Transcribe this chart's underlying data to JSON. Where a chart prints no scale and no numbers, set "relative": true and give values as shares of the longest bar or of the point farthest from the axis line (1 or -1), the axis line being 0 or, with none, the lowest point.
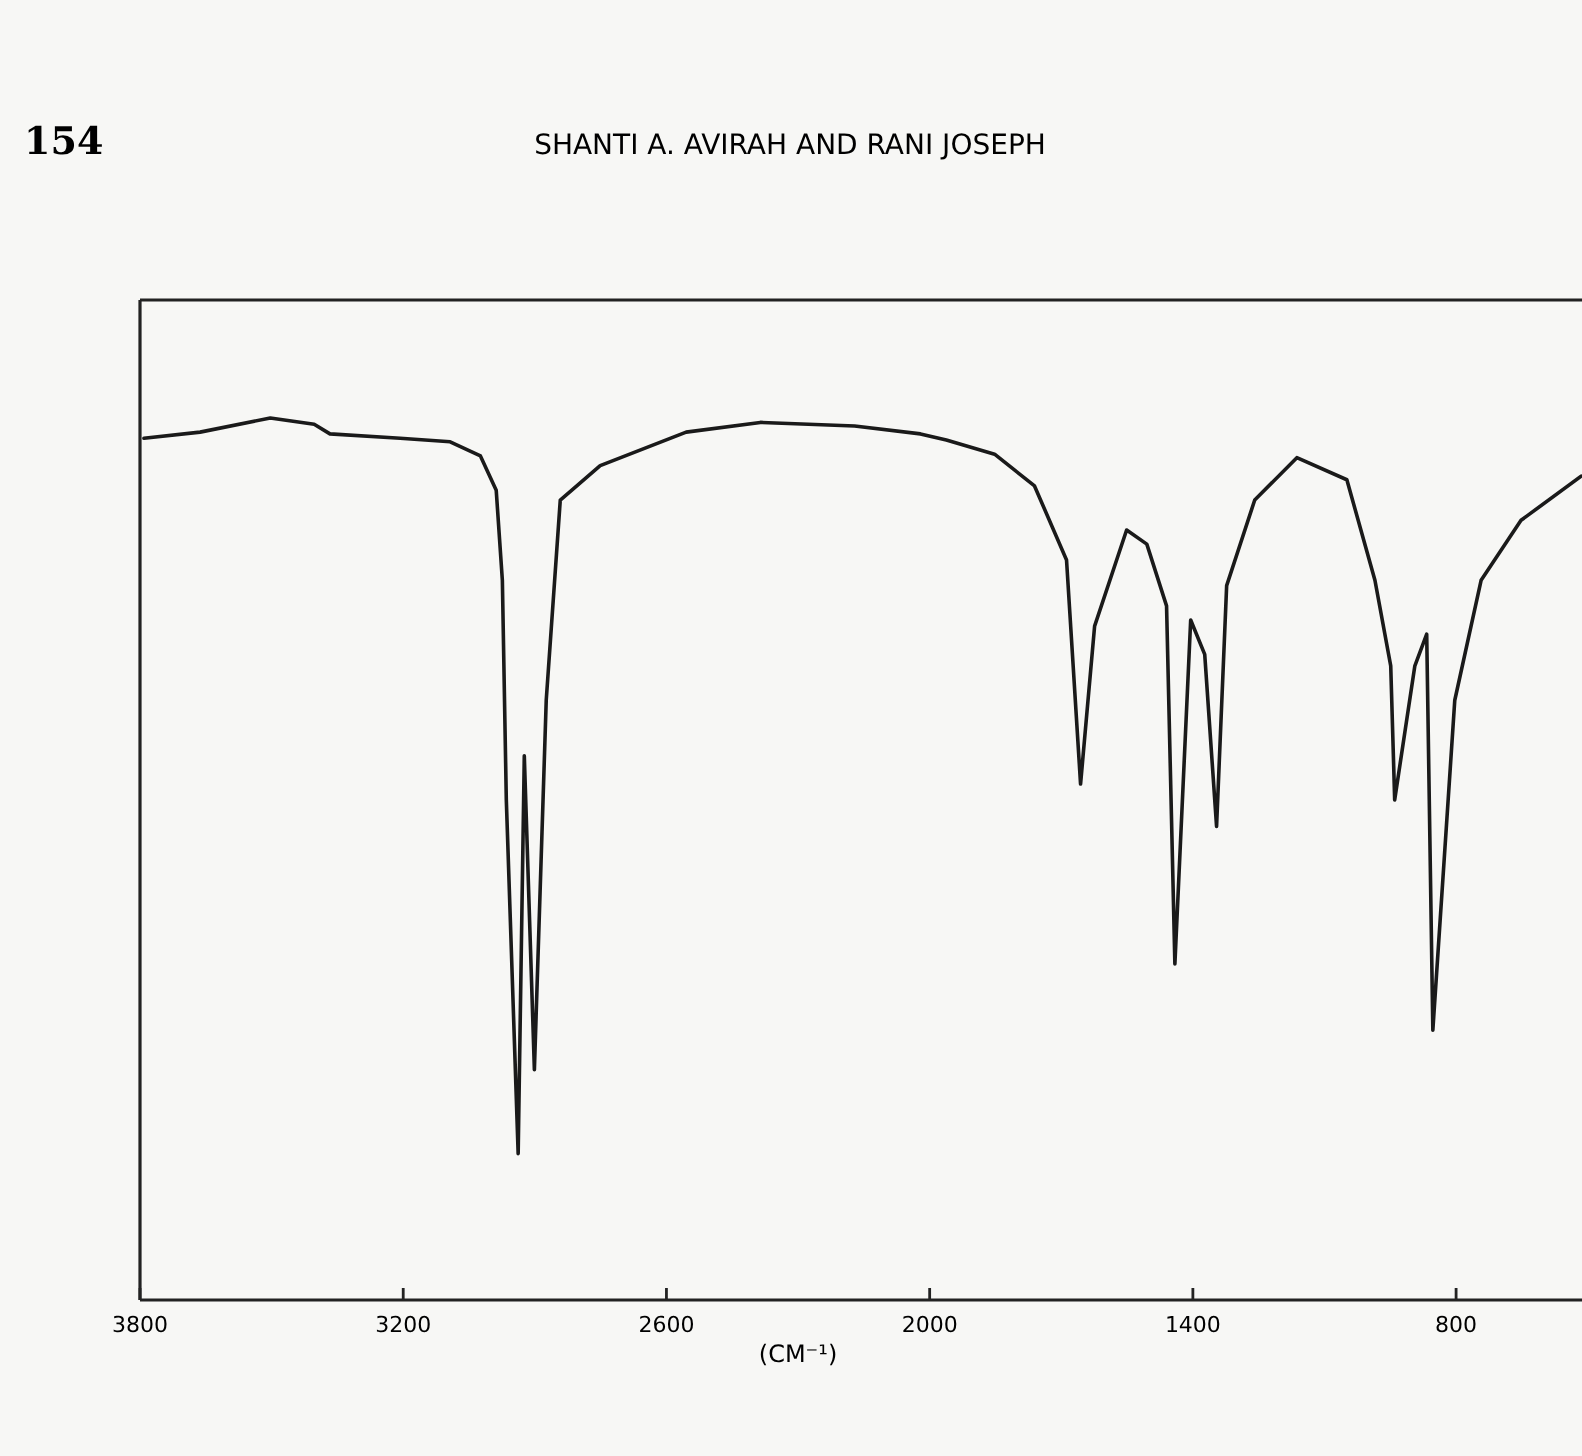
{
  "chart_data": {
    "type": "line",
    "relative": true,
    "annotations": [
      "154",
      "SHANTI A. AVIRAH AND RANI JOSEPH"
    ],
    "xlabel": "(CM⁻¹)",
    "xlim": [
      3800,
      513
    ],
    "xticks": [
      3800,
      3200,
      2600,
      2000,
      1400,
      800
    ],
    "grid": false,
    "marker": "none",
    "line_style": "solid",
    "series": [
      {
        "color": "#1a1a1a",
        "x": [
          3791,
          3663,
          3503,
          3403,
          3367,
          3207,
          3093,
          3024,
          2988,
          2974,
          2965,
          2938,
          2924,
          2901,
          2874,
          2842,
          2751,
          2555,
          2386,
          2171,
          2021,
          1962,
          1852,
          1761,
          1688,
          1656,
          1624,
          1551,
          1505,
          1460,
          1441,
          1405,
          1373,
          1346,
          1323,
          1259,
          1163,
          1049,
          985,
          949,
          940,
          894,
          867,
          853,
          803,
          743,
          652,
          515
        ],
        "values": [
          0.977,
          0.984,
          1,
          0.993,
          0.982,
          0.977,
          0.973,
          0.957,
          0.918,
          0.816,
          0.567,
          0.166,
          0.617,
          0.261,
          0.68,
          0.907,
          0.946,
          0.984,
          0.995,
          0.991,
          0.982,
          0.975,
          0.959,
          0.923,
          0.839,
          0.585,
          0.764,
          0.873,
          0.857,
          0.787,
          0.381,
          0.771,
          0.732,
          0.537,
          0.81,
          0.907,
          0.955,
          0.93,
          0.816,
          0.719,
          0.567,
          0.719,
          0.755,
          0.306,
          0.68,
          0.816,
          0.884,
          0.934
        ]
      }
    ]
  }
}
